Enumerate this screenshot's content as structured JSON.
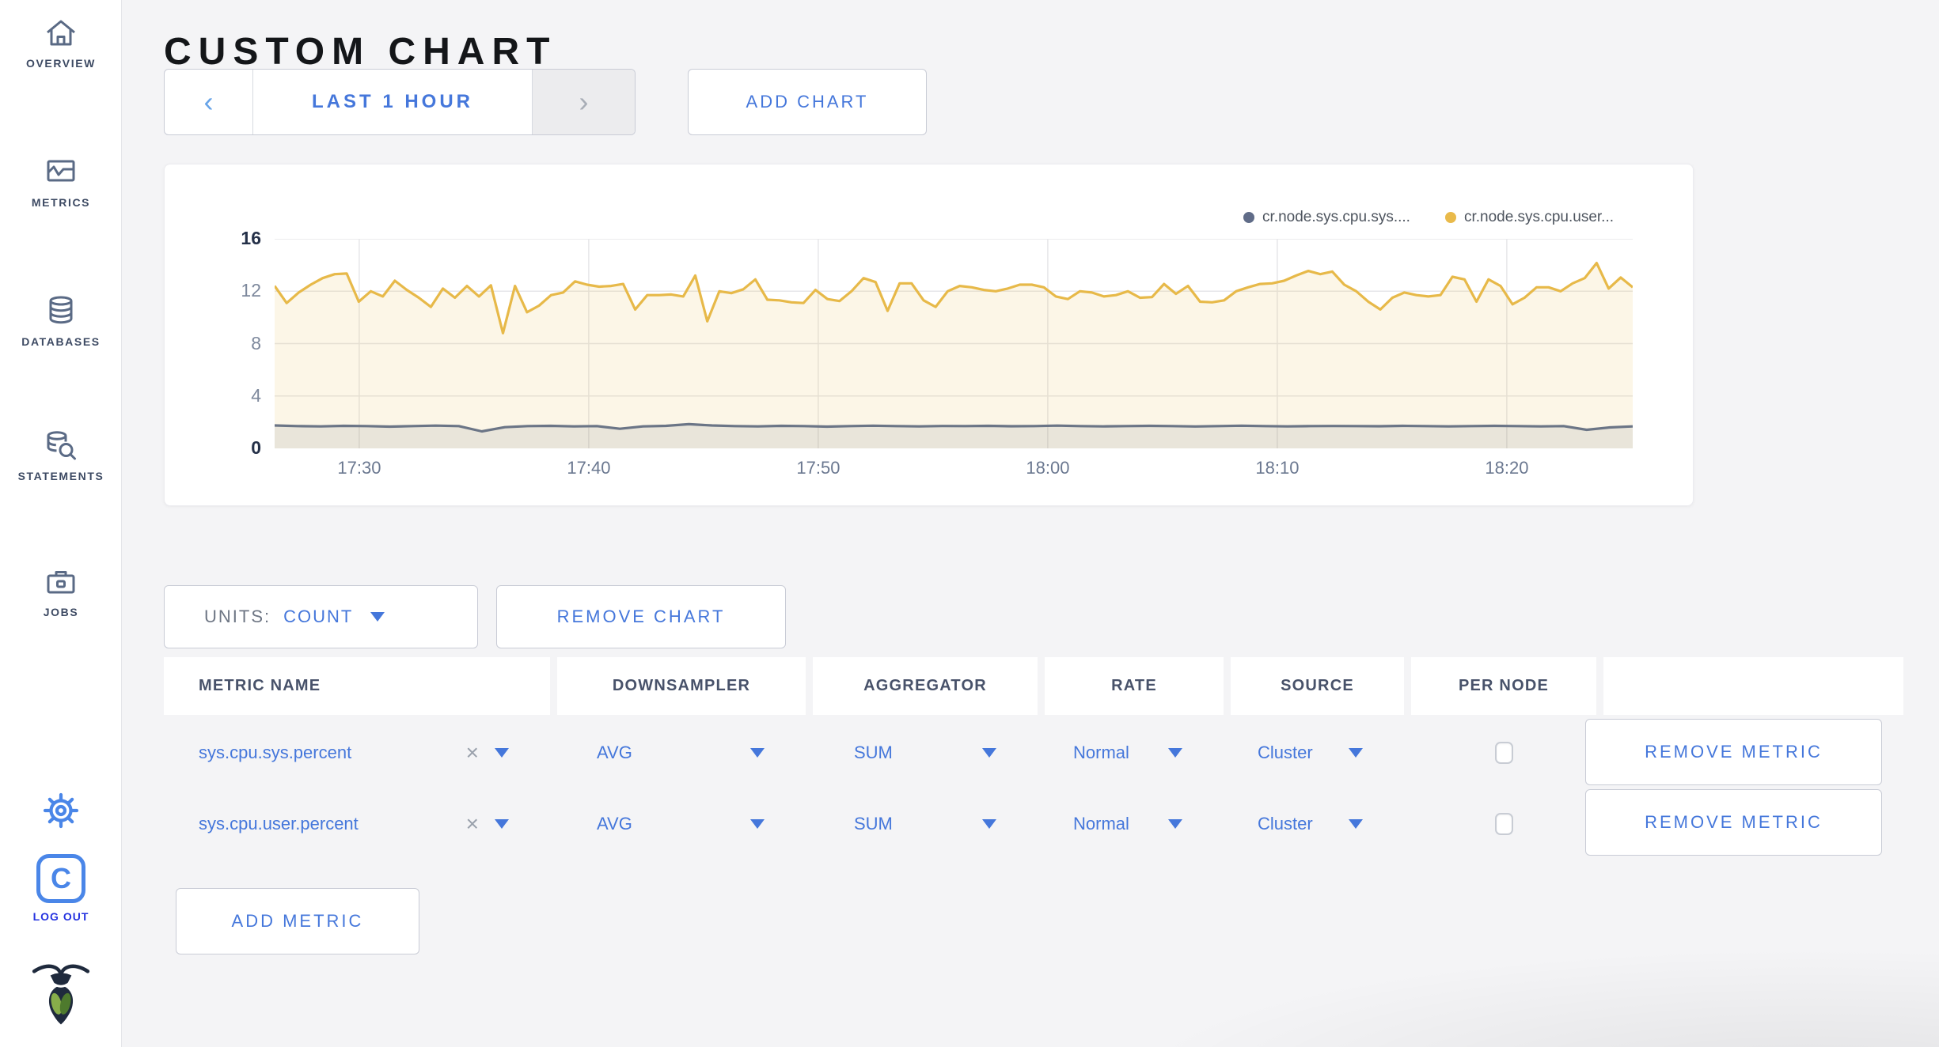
{
  "colors": {
    "accent_blue": "#4577db",
    "logout_blue": "#2533e0",
    "icon_blue": "#4a86e8",
    "nav_slate": "#5a6a85",
    "series_user_yellow": "#e7b949",
    "series_sys_slate": "#6b7586",
    "legend_sys_dot": "#606c88",
    "legend_user_dot": "#e9ba4a"
  },
  "sidebar": {
    "items": [
      {
        "label": "OVERVIEW",
        "icon": "home-icon"
      },
      {
        "label": "METRICS",
        "icon": "metrics-icon"
      },
      {
        "label": "DATABASES",
        "icon": "databases-icon"
      },
      {
        "label": "STATEMENTS",
        "icon": "statements-icon"
      },
      {
        "label": "JOBS",
        "icon": "jobs-icon"
      }
    ],
    "logout_label": "LOG OUT"
  },
  "header": {
    "title": "CUSTOM CHART"
  },
  "toolbar": {
    "prev": "‹",
    "range_label": "LAST 1 HOUR",
    "next": "›",
    "add_chart": "ADD CHART"
  },
  "chart_controls": {
    "units_label": "UNITS:",
    "units_value": "COUNT",
    "remove_chart": "REMOVE CHART",
    "add_metric": "ADD METRIC",
    "remove_metric": "REMOVE METRIC"
  },
  "metrics_table": {
    "headers": [
      "METRIC NAME",
      "DOWNSAMPLER",
      "AGGREGATOR",
      "RATE",
      "SOURCE",
      "PER NODE"
    ],
    "rows": [
      {
        "name": "sys.cpu.sys.percent",
        "downsampler": "AVG",
        "aggregator": "SUM",
        "rate": "Normal",
        "source": "Cluster",
        "per_node": false
      },
      {
        "name": "sys.cpu.user.percent",
        "downsampler": "AVG",
        "aggregator": "SUM",
        "rate": "Normal",
        "source": "Cluster",
        "per_node": false
      }
    ]
  },
  "chart_data": {
    "type": "line",
    "title": "",
    "xlabel": "",
    "ylabel": "",
    "ylim": [
      0,
      16
    ],
    "yticks": [
      16,
      12,
      8,
      4,
      0
    ],
    "grid": true,
    "legend_position": "top-right",
    "x_range": [
      "17:26",
      "18:25"
    ],
    "xticks": [
      {
        "label": "17:30",
        "f": 0.0623
      },
      {
        "label": "17:40",
        "f": 0.2313
      },
      {
        "label": "17:50",
        "f": 0.4003
      },
      {
        "label": "18:00",
        "f": 0.5693
      },
      {
        "label": "18:10",
        "f": 0.7383
      },
      {
        "label": "18:20",
        "f": 0.9073
      }
    ],
    "legend": [
      {
        "label": "cr.node.sys.cpu.sys....",
        "color": "#606c88"
      },
      {
        "label": "cr.node.sys.cpu.user...",
        "color": "#e9ba4a"
      }
    ],
    "series": [
      {
        "name": "cr.node.sys.cpu.user...",
        "color": "#e7b949",
        "fill": "rgba(231,185,73,0.13)",
        "values": [
          12.4,
          11.1,
          11.9,
          12.5,
          13.0,
          13.3,
          13.35,
          11.2,
          12.0,
          11.6,
          12.8,
          12.1,
          11.5,
          10.8,
          12.2,
          11.5,
          12.4,
          11.6,
          12.45,
          8.8,
          12.4,
          10.4,
          10.9,
          11.7,
          11.9,
          12.75,
          12.5,
          12.35,
          12.4,
          12.55,
          10.6,
          11.7,
          11.7,
          11.75,
          11.6,
          13.2,
          9.7,
          12.0,
          11.85,
          12.15,
          12.9,
          11.35,
          11.3,
          11.15,
          11.1,
          12.1,
          11.4,
          11.25,
          12.0,
          13.0,
          12.7,
          10.5,
          12.6,
          12.6,
          11.3,
          10.8,
          12.0,
          12.4,
          12.3,
          12.1,
          12.0,
          12.2,
          12.5,
          12.5,
          12.3,
          11.6,
          11.4,
          12.0,
          11.9,
          11.6,
          11.7,
          12.0,
          11.5,
          11.55,
          12.55,
          11.8,
          12.4,
          11.2,
          11.15,
          11.3,
          12.0,
          12.3,
          12.55,
          12.6,
          12.8,
          13.2,
          13.55,
          13.3,
          13.5,
          12.5,
          12.0,
          11.2,
          10.6,
          11.5,
          11.9,
          11.7,
          11.6,
          11.7,
          13.1,
          12.9,
          11.2,
          12.9,
          12.4,
          11.0,
          11.5,
          12.3,
          12.3,
          12.0,
          12.6,
          13.0,
          14.15,
          12.2,
          13.05,
          12.3
        ]
      },
      {
        "name": "cr.node.sys.cpu.sys....",
        "color": "#6b7586",
        "fill": "rgba(107,117,134,0.13)",
        "values": [
          1.75,
          1.7,
          1.68,
          1.72,
          1.7,
          1.66,
          1.7,
          1.74,
          1.7,
          1.3,
          1.62,
          1.7,
          1.72,
          1.68,
          1.7,
          1.5,
          1.68,
          1.72,
          1.85,
          1.75,
          1.7,
          1.68,
          1.72,
          1.7,
          1.66,
          1.7,
          1.73,
          1.7,
          1.68,
          1.71,
          1.7,
          1.72,
          1.69,
          1.7,
          1.74,
          1.7,
          1.68,
          1.7,
          1.72,
          1.7,
          1.67,
          1.7,
          1.73,
          1.7,
          1.68,
          1.7,
          1.71,
          1.7,
          1.69,
          1.72,
          1.7,
          1.68,
          1.7,
          1.72,
          1.7,
          1.68,
          1.7,
          1.42,
          1.6,
          1.68
        ]
      }
    ]
  }
}
